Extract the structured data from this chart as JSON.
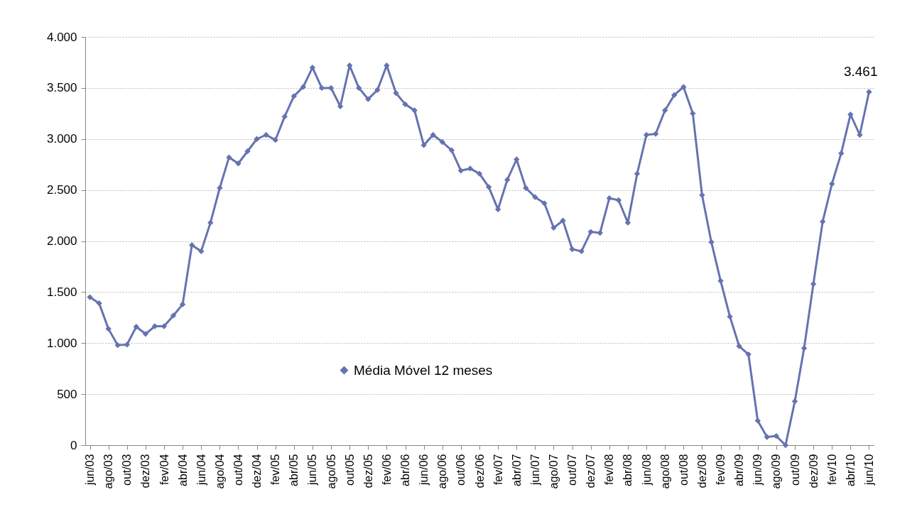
{
  "chart_data": {
    "type": "line",
    "categories": [
      "jun/03",
      null,
      "ago/03",
      null,
      "out/03",
      null,
      "dez/03",
      null,
      "fev/04",
      null,
      "abr/04",
      null,
      "jun/04",
      null,
      "ago/04",
      null,
      "out/04",
      null,
      "dez/04",
      null,
      "fev/05",
      null,
      "abr/05",
      null,
      "jun/05",
      null,
      "ago/05",
      null,
      "out/05",
      null,
      "dez/05",
      null,
      "fev/06",
      null,
      "abr/06",
      null,
      "jun/06",
      null,
      "ago/06",
      null,
      "out/06",
      null,
      "dez/06",
      null,
      "fev/07",
      null,
      "abr/07",
      null,
      "jun/07",
      null,
      "ago/07",
      null,
      "out/07",
      null,
      "dez/07",
      null,
      "fev/08",
      null,
      "abr/08",
      null,
      "jun/08",
      null,
      "ago/08",
      null,
      "out/08",
      null,
      "dez/08",
      null,
      "fev/09",
      null,
      "abr/09",
      null,
      "jun/09",
      null,
      "ago/09",
      null,
      "out/09",
      null,
      "dez/09",
      null,
      "fev/10",
      null,
      "abr/10",
      null,
      "jun/10"
    ],
    "series": [
      {
        "name": "Média Móvel 12 meses",
        "color": "#6673b0",
        "values": [
          1450,
          1390,
          1140,
          980,
          985,
          1160,
          1090,
          1165,
          1165,
          1270,
          1380,
          1960,
          1900,
          2180,
          2520,
          2820,
          2760,
          2880,
          3000,
          3040,
          2990,
          3220,
          3420,
          3510,
          3700,
          3500,
          3500,
          3320,
          3720,
          3500,
          3390,
          3480,
          3720,
          3450,
          3340,
          3280,
          2940,
          3040,
          2970,
          2890,
          2690,
          2710,
          2660,
          2530,
          2310,
          2600,
          2800,
          2520,
          2430,
          2370,
          2130,
          2200,
          1920,
          1900,
          2090,
          2080,
          2420,
          2400,
          2180,
          2660,
          3040,
          3050,
          3280,
          3430,
          3510,
          3250,
          2450,
          1990,
          1610,
          1260,
          970,
          890,
          240,
          80,
          90,
          0,
          430,
          950,
          1580,
          2190,
          2560,
          2860,
          3240,
          3040,
          3461
        ]
      }
    ],
    "ylim": [
      0,
      4000
    ],
    "yticks": [
      0,
      500,
      {
        "value": 1000,
        "label": "1.000"
      },
      {
        "value": 1500,
        "label": "1.500"
      },
      {
        "value": 2000,
        "label": "2.000"
      },
      {
        "value": 2500,
        "label": "2.500"
      },
      {
        "value": 3000,
        "label": "3.000"
      },
      {
        "value": 3500,
        "label": "3.500"
      },
      {
        "value": 4000,
        "label": "4.000"
      }
    ],
    "annotations": [
      {
        "text": "3.461",
        "x": "jun/10",
        "y": 3461
      }
    ],
    "grid": "y",
    "legend": "bottom",
    "marker": "diamond",
    "line_style": "solid"
  }
}
